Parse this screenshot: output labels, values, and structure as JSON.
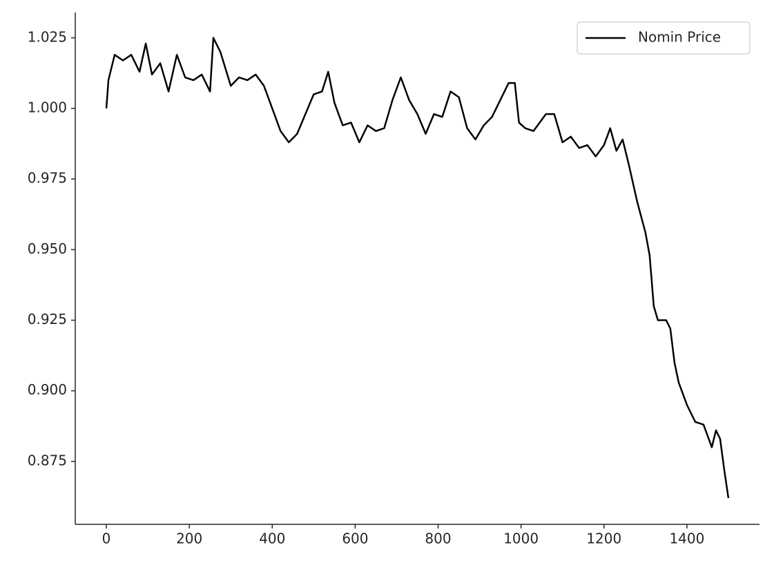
{
  "chart_data": {
    "type": "line",
    "x": [
      0,
      5,
      20,
      40,
      60,
      80,
      95,
      110,
      130,
      150,
      170,
      190,
      210,
      230,
      250,
      258,
      275,
      300,
      320,
      340,
      360,
      380,
      400,
      420,
      440,
      460,
      480,
      500,
      520,
      535,
      550,
      570,
      590,
      610,
      630,
      650,
      670,
      690,
      710,
      730,
      750,
      770,
      790,
      810,
      830,
      850,
      870,
      890,
      910,
      930,
      950,
      970,
      985,
      995,
      1010,
      1030,
      1060,
      1080,
      1100,
      1120,
      1140,
      1160,
      1180,
      1200,
      1215,
      1230,
      1245,
      1260,
      1280,
      1300,
      1310,
      1320,
      1330,
      1350,
      1360,
      1370,
      1380,
      1400,
      1420,
      1440,
      1460,
      1470,
      1480,
      1490,
      1500
    ],
    "series": [
      {
        "name": "Nomin Price",
        "color": "#000000",
        "values": [
          1.0,
          1.01,
          1.019,
          1.017,
          1.019,
          1.013,
          1.023,
          1.012,
          1.016,
          1.006,
          1.019,
          1.011,
          1.01,
          1.012,
          1.006,
          1.025,
          1.02,
          1.008,
          1.011,
          1.01,
          1.012,
          1.008,
          1.0,
          0.992,
          0.988,
          0.991,
          0.998,
          1.005,
          1.006,
          1.013,
          1.002,
          0.994,
          0.995,
          0.988,
          0.994,
          0.992,
          0.993,
          1.003,
          1.011,
          1.003,
          0.998,
          0.991,
          0.998,
          0.997,
          1.006,
          1.004,
          0.993,
          0.989,
          0.994,
          0.997,
          1.003,
          1.009,
          1.009,
          0.995,
          0.993,
          0.992,
          0.998,
          0.998,
          0.988,
          0.99,
          0.986,
          0.987,
          0.983,
          0.987,
          0.993,
          0.985,
          0.989,
          0.98,
          0.967,
          0.956,
          0.948,
          0.93,
          0.925,
          0.925,
          0.922,
          0.91,
          0.903,
          0.895,
          0.889,
          0.888,
          0.88,
          0.886,
          0.883,
          0.872,
          0.862
        ]
      }
    ],
    "xlim": [
      -75,
      1575
    ],
    "xticks": [
      0,
      200,
      400,
      600,
      800,
      1000,
      1200,
      1400
    ],
    "ylim": [
      0.8527,
      1.034
    ],
    "yticks": [
      {
        "value": 0.875,
        "label": "0.875"
      },
      {
        "value": 0.9,
        "label": "0.900"
      },
      {
        "value": 0.925,
        "label": "0.925"
      },
      {
        "value": 0.95,
        "label": "0.950"
      },
      {
        "value": 0.975,
        "label": "0.975"
      },
      {
        "value": 1.0,
        "label": "1.000"
      },
      {
        "value": 1.025,
        "label": "1.025"
      }
    ],
    "legend": "upper right"
  }
}
